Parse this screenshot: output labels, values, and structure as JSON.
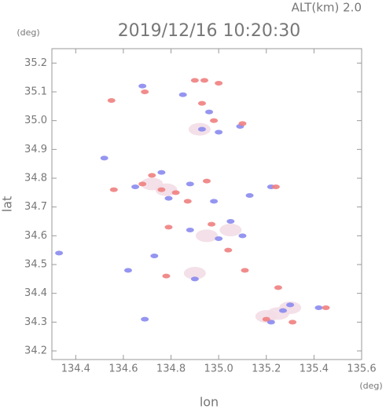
{
  "chart_data": {
    "type": "scatter",
    "annotation": "ALT(km)  2.0",
    "title": "2019/12/16  10:20:30",
    "y_unit": "(deg)",
    "x_unit": "(deg)",
    "ylabel": "lat",
    "xlabel": "lon",
    "xlim": [
      134.3,
      135.6
    ],
    "ylim": [
      34.17,
      35.25
    ],
    "xticks": [
      134.4,
      134.6,
      134.8,
      {
        "value": 135,
        "label": "135.0"
      },
      135.2,
      135.4,
      135.6
    ],
    "yticks": [
      34.2,
      34.3,
      34.4,
      34.5,
      34.6,
      34.7,
      34.8,
      34.9,
      {
        "value": 35,
        "label": "35.0"
      },
      35.1,
      35.2
    ],
    "series": [
      {
        "color": "#f3dde6",
        "x": [
          135.25,
          135.3,
          135.2,
          134.78,
          134.72,
          134.92,
          134.95,
          135.05,
          134.9
        ],
        "y": [
          34.33,
          34.35,
          34.32,
          34.76,
          34.78,
          34.97,
          34.6,
          34.62,
          34.47
        ]
      },
      {
        "color": "#8a8af0",
        "x": [
          134.33,
          134.69,
          134.76,
          134.65,
          134.93,
          135.0,
          134.88,
          135.05,
          134.9,
          135.22,
          135.27,
          135.3,
          134.52,
          134.85,
          134.68,
          134.96,
          135.09,
          134.79,
          135.13,
          134.62,
          134.73,
          135.1,
          134.88,
          135.0,
          134.98,
          135.42,
          135.22
        ],
        "y": [
          34.54,
          34.31,
          34.82,
          34.77,
          34.97,
          34.96,
          34.62,
          34.65,
          34.45,
          34.3,
          34.34,
          34.36,
          34.87,
          35.09,
          35.12,
          35.03,
          34.98,
          34.73,
          34.74,
          34.48,
          34.53,
          34.6,
          34.78,
          34.59,
          34.72,
          34.35,
          34.77
        ]
      },
      {
        "color": "#f08080",
        "x": [
          134.9,
          134.94,
          135.0,
          134.69,
          134.55,
          134.93,
          135.1,
          134.68,
          134.76,
          134.82,
          134.56,
          134.87,
          135.25,
          135.2,
          135.45,
          135.11,
          134.79,
          134.97,
          134.95,
          135.24,
          134.78,
          135.04,
          134.72,
          135.31,
          134.98
        ],
        "y": [
          35.14,
          35.14,
          35.13,
          35.1,
          35.07,
          35.06,
          34.99,
          34.78,
          34.76,
          34.75,
          34.76,
          34.72,
          34.42,
          34.31,
          34.35,
          34.48,
          34.63,
          34.64,
          34.79,
          34.77,
          34.46,
          34.55,
          34.81,
          34.3,
          35.0
        ]
      }
    ]
  }
}
